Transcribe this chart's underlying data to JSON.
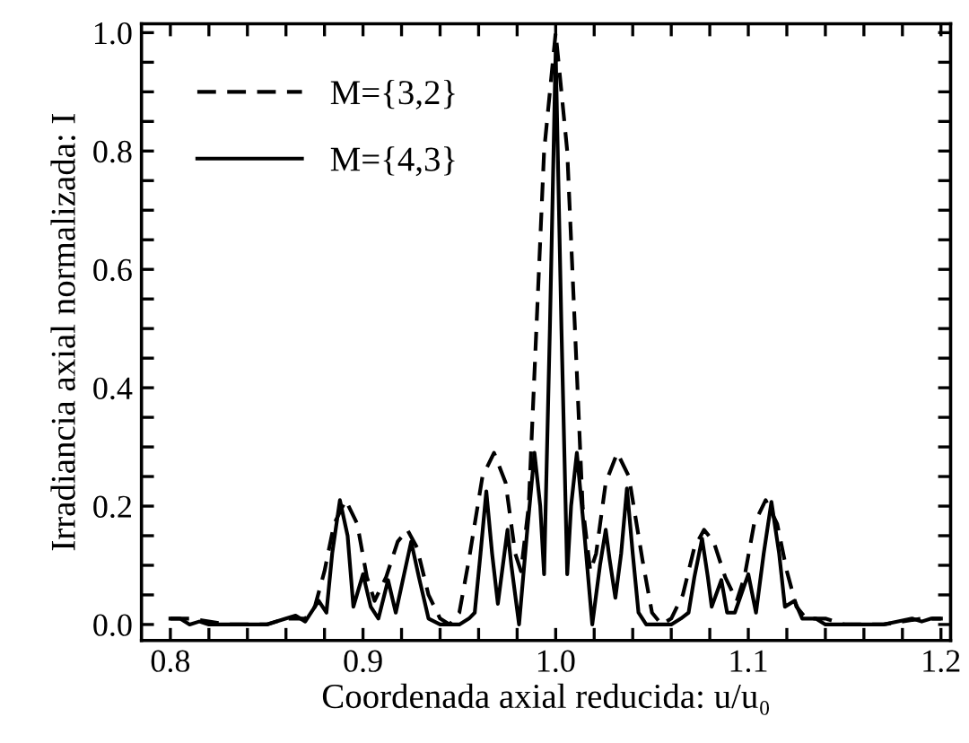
{
  "chart_data": {
    "type": "line",
    "xlabel": "Coordenada axial reducida: u/u₀",
    "ylabel": "Irradiancia axial normalizada: I",
    "xlim": [
      0.785,
      1.205
    ],
    "ylim": [
      -0.027,
      1.015
    ],
    "xticks": [
      0.8,
      {
        "value": 0.82,
        "label": null
      },
      {
        "value": 0.84,
        "label": null
      },
      {
        "value": 0.86,
        "label": null
      },
      {
        "value": 0.88,
        "label": null
      },
      0.9,
      {
        "value": 0.92,
        "label": null
      },
      {
        "value": 0.94,
        "label": null
      },
      {
        "value": 0.96,
        "label": null
      },
      {
        "value": 0.98,
        "label": null
      },
      {
        "value": 1.0,
        "label": "1.0"
      },
      {
        "value": 1.02,
        "label": null
      },
      {
        "value": 1.04,
        "label": null
      },
      {
        "value": 1.06,
        "label": null
      },
      {
        "value": 1.08,
        "label": null
      },
      1.1,
      {
        "value": 1.12,
        "label": null
      },
      {
        "value": 1.14,
        "label": null
      },
      {
        "value": 1.16,
        "label": null
      },
      {
        "value": 1.18,
        "label": null
      },
      1.2
    ],
    "yticks": [
      {
        "value": 0.0,
        "label": "0.0"
      },
      {
        "value": 0.05,
        "label": null
      },
      {
        "value": 0.1,
        "label": null
      },
      {
        "value": 0.15,
        "label": null
      },
      0.2,
      {
        "value": 0.25,
        "label": null
      },
      {
        "value": 0.3,
        "label": null
      },
      {
        "value": 0.35,
        "label": null
      },
      0.4,
      {
        "value": 0.45,
        "label": null
      },
      {
        "value": 0.5,
        "label": null
      },
      {
        "value": 0.55,
        "label": null
      },
      0.6,
      {
        "value": 0.65,
        "label": null
      },
      {
        "value": 0.7,
        "label": null
      },
      {
        "value": 0.75,
        "label": null
      },
      0.8,
      {
        "value": 0.85,
        "label": null
      },
      {
        "value": 0.9,
        "label": null
      },
      {
        "value": 0.95,
        "label": null
      },
      {
        "value": 1.0,
        "label": "1.0"
      }
    ],
    "grid": false,
    "legend": "top left",
    "series": [
      {
        "name": "M={3,2}",
        "color": "#000000",
        "line_style": "dashed",
        "x": [
          0.8,
          0.81,
          0.83,
          0.85,
          0.86,
          0.87,
          0.875,
          0.88,
          0.885,
          0.891,
          0.897,
          0.902,
          0.906,
          0.912,
          0.918,
          0.923,
          0.928,
          0.934,
          0.94,
          0.945,
          0.95,
          0.955,
          0.962,
          0.968,
          0.974,
          0.979,
          0.982,
          0.986,
          0.99,
          0.994,
          1.0,
          1.006,
          1.01,
          1.014,
          1.018,
          1.021,
          1.026,
          1.032,
          1.038,
          1.045,
          1.05,
          1.055,
          1.06,
          1.066,
          1.072,
          1.077,
          1.082,
          1.088,
          1.094,
          1.098,
          1.103,
          1.109,
          1.115,
          1.12,
          1.125,
          1.13,
          1.14,
          1.15,
          1.17,
          1.19,
          1.2
        ],
        "values": [
          0.01,
          0.01,
          0.0,
          0.0,
          0.01,
          0.01,
          0.03,
          0.09,
          0.17,
          0.21,
          0.17,
          0.08,
          0.04,
          0.08,
          0.14,
          0.16,
          0.13,
          0.05,
          0.01,
          0.0,
          0.02,
          0.11,
          0.25,
          0.29,
          0.24,
          0.12,
          0.09,
          0.2,
          0.5,
          0.8,
          1.0,
          0.8,
          0.5,
          0.2,
          0.09,
          0.12,
          0.24,
          0.29,
          0.25,
          0.11,
          0.02,
          0.0,
          0.01,
          0.05,
          0.13,
          0.16,
          0.14,
          0.08,
          0.04,
          0.08,
          0.17,
          0.21,
          0.17,
          0.09,
          0.03,
          0.01,
          0.01,
          0.0,
          0.0,
          0.01,
          0.01
        ]
      },
      {
        "name": "M={4,3}",
        "color": "#000000",
        "line_style": "solid",
        "x": [
          0.8,
          0.805,
          0.81,
          0.815,
          0.82,
          0.85,
          0.86,
          0.865,
          0.87,
          0.877,
          0.881,
          0.884,
          0.888,
          0.892,
          0.895,
          0.9,
          0.904,
          0.908,
          0.913,
          0.917,
          0.921,
          0.925,
          0.929,
          0.934,
          0.94,
          0.95,
          0.955,
          0.958,
          0.961,
          0.964,
          0.967,
          0.97,
          0.973,
          0.975,
          0.977,
          0.981,
          0.985,
          0.989,
          0.992,
          0.994,
          0.997,
          1.0,
          1.003,
          1.006,
          1.008,
          1.011,
          1.015,
          1.019,
          1.023,
          1.026,
          1.028,
          1.031,
          1.034,
          1.037,
          1.04,
          1.043,
          1.047,
          1.06,
          1.065,
          1.069,
          1.072,
          1.076,
          1.079,
          1.081,
          1.086,
          1.089,
          1.093,
          1.1,
          1.104,
          1.108,
          1.112,
          1.116,
          1.119,
          1.124,
          1.128,
          1.135,
          1.14,
          1.17,
          1.185,
          1.19,
          1.195,
          1.2
        ],
        "values": [
          0.01,
          0.01,
          0.0,
          0.005,
          0.0,
          0.0,
          0.01,
          0.015,
          0.005,
          0.04,
          0.02,
          0.12,
          0.21,
          0.15,
          0.03,
          0.085,
          0.03,
          0.01,
          0.075,
          0.02,
          0.08,
          0.14,
          0.08,
          0.01,
          0.0,
          0.0,
          0.01,
          0.02,
          0.12,
          0.225,
          0.12,
          0.035,
          0.11,
          0.16,
          0.1,
          0.0,
          0.15,
          0.29,
          0.2,
          0.085,
          0.5,
          0.97,
          0.5,
          0.085,
          0.2,
          0.29,
          0.15,
          0.0,
          0.1,
          0.16,
          0.11,
          0.045,
          0.12,
          0.23,
          0.12,
          0.02,
          0.0,
          0.0,
          0.01,
          0.02,
          0.08,
          0.145,
          0.08,
          0.03,
          0.075,
          0.02,
          0.02,
          0.085,
          0.02,
          0.12,
          0.207,
          0.12,
          0.03,
          0.04,
          0.01,
          0.01,
          0.0,
          0.0,
          0.01,
          0.005,
          0.01,
          0.01
        ]
      }
    ]
  }
}
